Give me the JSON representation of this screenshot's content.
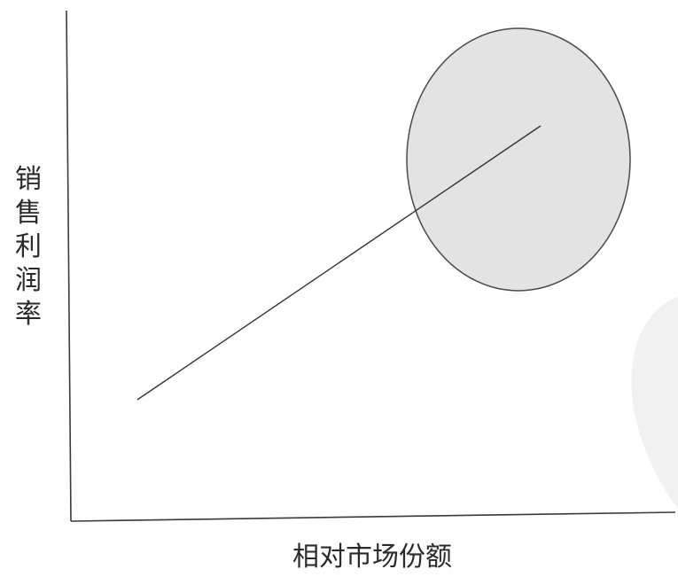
{
  "diagram": {
    "x_axis_label": "相对市场份额",
    "y_axis_label": "销售利润率",
    "colors": {
      "axis": "#3a3a3a",
      "line": "#333333",
      "ellipse_fill": "#e3e3e3",
      "ellipse_stroke": "#4a4a4a"
    }
  }
}
